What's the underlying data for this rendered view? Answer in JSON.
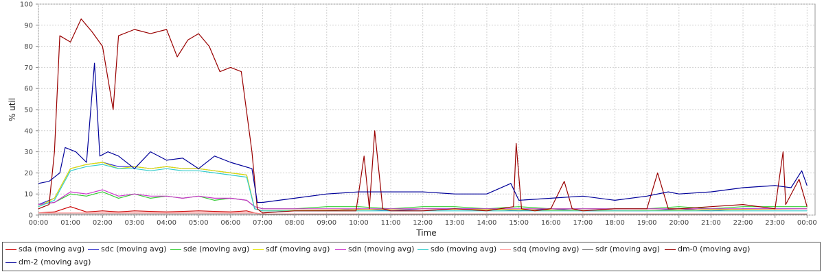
{
  "chart_data": {
    "type": "line",
    "title": "",
    "xlabel": "Time",
    "ylabel": "% util",
    "ylim": [
      0,
      100
    ],
    "xlim": [
      "00:00",
      "24:15"
    ],
    "grid": true,
    "legend_position": "bottom",
    "yticks": [
      "0",
      "10",
      "20",
      "30",
      "40",
      "50",
      "60",
      "70",
      "80",
      "90",
      "100"
    ],
    "xticks": [
      "00:00",
      "01:00",
      "02:00",
      "03:00",
      "04:00",
      "05:00",
      "06:00",
      "07:00",
      "08:00",
      "09:00",
      "10:00",
      "11:00",
      "12:00",
      "13:00",
      "14:00",
      "15:00",
      "16:00",
      "17:00",
      "18:00",
      "19:00",
      "20:00",
      "21:00",
      "22:00",
      "23:00",
      "00:00"
    ],
    "series": [
      {
        "name": "sda (moving avg)",
        "color": "#cc0000",
        "x": [
          "00:00",
          "00:30",
          "01:00",
          "01:30",
          "02:00",
          "02:30",
          "03:00",
          "04:00",
          "05:00",
          "06:00",
          "06:30",
          "06:45",
          "07:00",
          "12:00",
          "18:00",
          "24:00"
        ],
        "y": [
          1,
          1.5,
          4,
          1.5,
          2,
          1.5,
          2,
          1.5,
          2,
          1.5,
          2,
          1,
          0.5,
          0.5,
          0.5,
          0.5
        ]
      },
      {
        "name": "sdc (moving avg)",
        "color": "#3333cc",
        "x": [
          "00:00",
          "00:30",
          "01:00",
          "01:30",
          "02:00",
          "02:30",
          "03:00",
          "03:30",
          "04:00",
          "04:30",
          "05:00",
          "05:30",
          "06:00",
          "06:30",
          "06:45",
          "07:00",
          "08:00",
          "09:00",
          "10:00",
          "11:00",
          "12:00",
          "13:00",
          "14:00",
          "15:00",
          "16:00",
          "17:00",
          "18:00",
          "19:00",
          "20:00",
          "21:00",
          "22:00",
          "23:00",
          "24:00"
        ],
        "y": [
          5,
          8,
          22,
          24,
          25,
          23,
          23,
          22,
          23,
          22,
          22,
          21,
          20,
          19,
          3,
          2,
          2,
          2,
          3,
          2,
          3,
          3,
          3,
          2,
          3,
          2,
          2,
          2,
          3,
          2,
          3,
          3,
          3
        ]
      },
      {
        "name": "sde (moving avg)",
        "color": "#33cc33",
        "x": [
          "00:00",
          "00:30",
          "01:00",
          "01:30",
          "02:00",
          "02:30",
          "03:00",
          "03:30",
          "04:00",
          "04:30",
          "05:00",
          "05:30",
          "06:00",
          "06:30",
          "06:45",
          "07:00",
          "08:00",
          "09:00",
          "10:00",
          "11:00",
          "12:00",
          "13:00",
          "14:00",
          "15:00",
          "16:00",
          "17:00",
          "18:00",
          "19:00",
          "20:00",
          "21:00",
          "22:00",
          "23:00",
          "24:00"
        ],
        "y": [
          5,
          6,
          10,
          9,
          11,
          8,
          10,
          8,
          9,
          8,
          9,
          7,
          8,
          7,
          4,
          3,
          3,
          4,
          4,
          3,
          4,
          4,
          3,
          4,
          3,
          3,
          3,
          3,
          4,
          3,
          4,
          4,
          4
        ]
      },
      {
        "name": "sdf (moving avg)",
        "color": "#e6e600",
        "x": [
          "00:00",
          "00:30",
          "01:00",
          "01:30",
          "02:00",
          "02:30",
          "03:00",
          "03:30",
          "04:00",
          "04:30",
          "05:00",
          "05:30",
          "06:00",
          "06:30",
          "06:45",
          "07:00",
          "12:00",
          "18:00",
          "24:00"
        ],
        "y": [
          4,
          8,
          22,
          24,
          25,
          22,
          23,
          22,
          23,
          22,
          22,
          21,
          20,
          19,
          3,
          2,
          3,
          2,
          3
        ]
      },
      {
        "name": "sdn (moving avg)",
        "color": "#cc33cc",
        "x": [
          "00:00",
          "00:30",
          "01:00",
          "01:30",
          "02:00",
          "02:30",
          "03:00",
          "03:30",
          "04:00",
          "04:30",
          "05:00",
          "05:30",
          "06:00",
          "06:30",
          "06:45",
          "07:00",
          "12:00",
          "18:00",
          "24:00"
        ],
        "y": [
          5,
          6,
          11,
          10,
          12,
          9,
          10,
          9,
          9,
          8,
          9,
          8,
          8,
          7,
          4,
          3,
          3,
          3,
          3
        ]
      },
      {
        "name": "sdo (moving avg)",
        "color": "#33cccc",
        "x": [
          "00:00",
          "00:30",
          "01:00",
          "01:30",
          "02:00",
          "02:30",
          "03:00",
          "03:30",
          "04:00",
          "04:30",
          "05:00",
          "05:30",
          "06:00",
          "06:30",
          "06:45",
          "07:00",
          "12:00",
          "18:00",
          "24:00"
        ],
        "y": [
          4,
          7,
          21,
          23,
          24,
          22,
          22,
          21,
          22,
          21,
          21,
          20,
          19,
          18,
          3,
          2,
          2,
          2,
          2
        ]
      },
      {
        "name": "sdq (moving avg)",
        "color": "#ff9999",
        "x": [
          "00:00",
          "06:45",
          "07:00",
          "24:00"
        ],
        "y": [
          1,
          1,
          0.5,
          0.5
        ]
      },
      {
        "name": "sdr (moving avg)",
        "color": "#777777",
        "x": [
          "00:00",
          "06:45",
          "07:00",
          "24:00"
        ],
        "y": [
          0.5,
          0.5,
          0.3,
          0.3
        ]
      },
      {
        "name": "dm-0 (moving avg)",
        "color": "#990000",
        "x": [
          "00:00",
          "00:20",
          "00:30",
          "00:40",
          "01:00",
          "01:20",
          "01:40",
          "02:00",
          "02:20",
          "02:30",
          "03:00",
          "03:30",
          "04:00",
          "04:20",
          "04:40",
          "05:00",
          "05:20",
          "05:40",
          "06:00",
          "06:20",
          "06:40",
          "06:50",
          "07:00",
          "08:00",
          "09:00",
          "09:55",
          "10:10",
          "10:20",
          "10:30",
          "10:45",
          "11:00",
          "12:00",
          "13:00",
          "14:00",
          "14:50",
          "14:55",
          "15:05",
          "15:30",
          "16:00",
          "16:25",
          "16:40",
          "17:00",
          "18:00",
          "19:00",
          "19:20",
          "19:40",
          "20:00",
          "21:00",
          "22:00",
          "23:00",
          "23:15",
          "23:20",
          "23:45",
          "24:00"
        ],
        "y": [
          3,
          5,
          30,
          85,
          82,
          93,
          87,
          80,
          50,
          85,
          88,
          86,
          88,
          75,
          83,
          86,
          80,
          68,
          70,
          68,
          30,
          3,
          1,
          2,
          2,
          2,
          28,
          3,
          40,
          3,
          2,
          2,
          3,
          2,
          4,
          34,
          3,
          2,
          3,
          16,
          3,
          2,
          3,
          3,
          20,
          3,
          3,
          4,
          5,
          3,
          30,
          5,
          17,
          4
        ]
      },
      {
        "name": "dm-2 (moving avg)",
        "color": "#000099",
        "x": [
          "00:00",
          "00:20",
          "00:40",
          "00:50",
          "01:10",
          "01:30",
          "01:45",
          "01:55",
          "02:10",
          "02:30",
          "03:00",
          "03:30",
          "04:00",
          "04:30",
          "05:00",
          "05:30",
          "06:00",
          "06:40",
          "06:50",
          "07:00",
          "08:00",
          "09:00",
          "10:00",
          "11:00",
          "12:00",
          "13:00",
          "14:00",
          "14:45",
          "15:00",
          "16:00",
          "17:00",
          "18:00",
          "19:00",
          "19:40",
          "20:00",
          "21:00",
          "22:00",
          "23:00",
          "23:30",
          "23:50",
          "24:00"
        ],
        "y": [
          15,
          16,
          20,
          32,
          30,
          25,
          72,
          28,
          30,
          28,
          22,
          30,
          26,
          27,
          22,
          28,
          25,
          22,
          6,
          6,
          8,
          10,
          11,
          11,
          11,
          10,
          10,
          15,
          7,
          8,
          9,
          7,
          9,
          11,
          10,
          11,
          13,
          14,
          13,
          21,
          14
        ]
      }
    ]
  }
}
